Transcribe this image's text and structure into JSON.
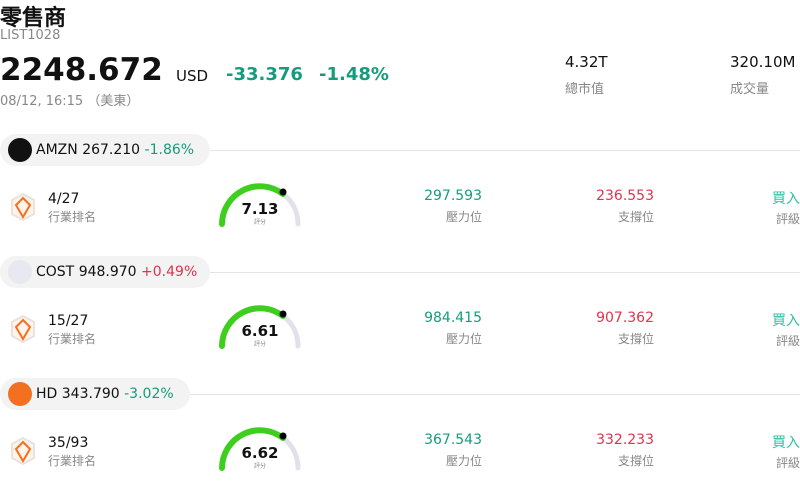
{
  "header": {
    "title": "零售商",
    "code": "LIST1028",
    "price": "2248.672",
    "currency": "USD",
    "change": "-33.376",
    "change_pct": "-1.48%",
    "time": "08/12, 16:15 （美東）",
    "stats": [
      {
        "value": "4.32T",
        "label": "總市值"
      },
      {
        "value": "320.10M",
        "label": "成交量"
      }
    ]
  },
  "stocks": [
    {
      "ticker": "AMZN",
      "price": "267.210",
      "change_pct": "-1.86%",
      "rank": "4/27",
      "rank_label": "行業排名",
      "score": "7.13",
      "score_label": "評分",
      "resistance": "297.593",
      "resistance_label": "壓力位",
      "support": "236.553",
      "support_label": "支撐位",
      "rating": "買入",
      "rating_label": "評級"
    },
    {
      "ticker": "COST",
      "price": "948.970",
      "change_pct": "+0.49%",
      "rank": "15/27",
      "rank_label": "行業排名",
      "score": "6.61",
      "score_label": "評分",
      "resistance": "984.415",
      "resistance_label": "壓力位",
      "support": "907.362",
      "support_label": "支撐位",
      "rating": "買入",
      "rating_label": "評級"
    },
    {
      "ticker": "HD",
      "price": "343.790",
      "change_pct": "-3.02%",
      "rank": "35/93",
      "rank_label": "行業排名",
      "score": "6.62",
      "score_label": "評分",
      "resistance": "367.543",
      "resistance_label": "壓力位",
      "support": "332.233",
      "support_label": "支撐位",
      "rating": "買入",
      "rating_label": "評級"
    }
  ]
}
